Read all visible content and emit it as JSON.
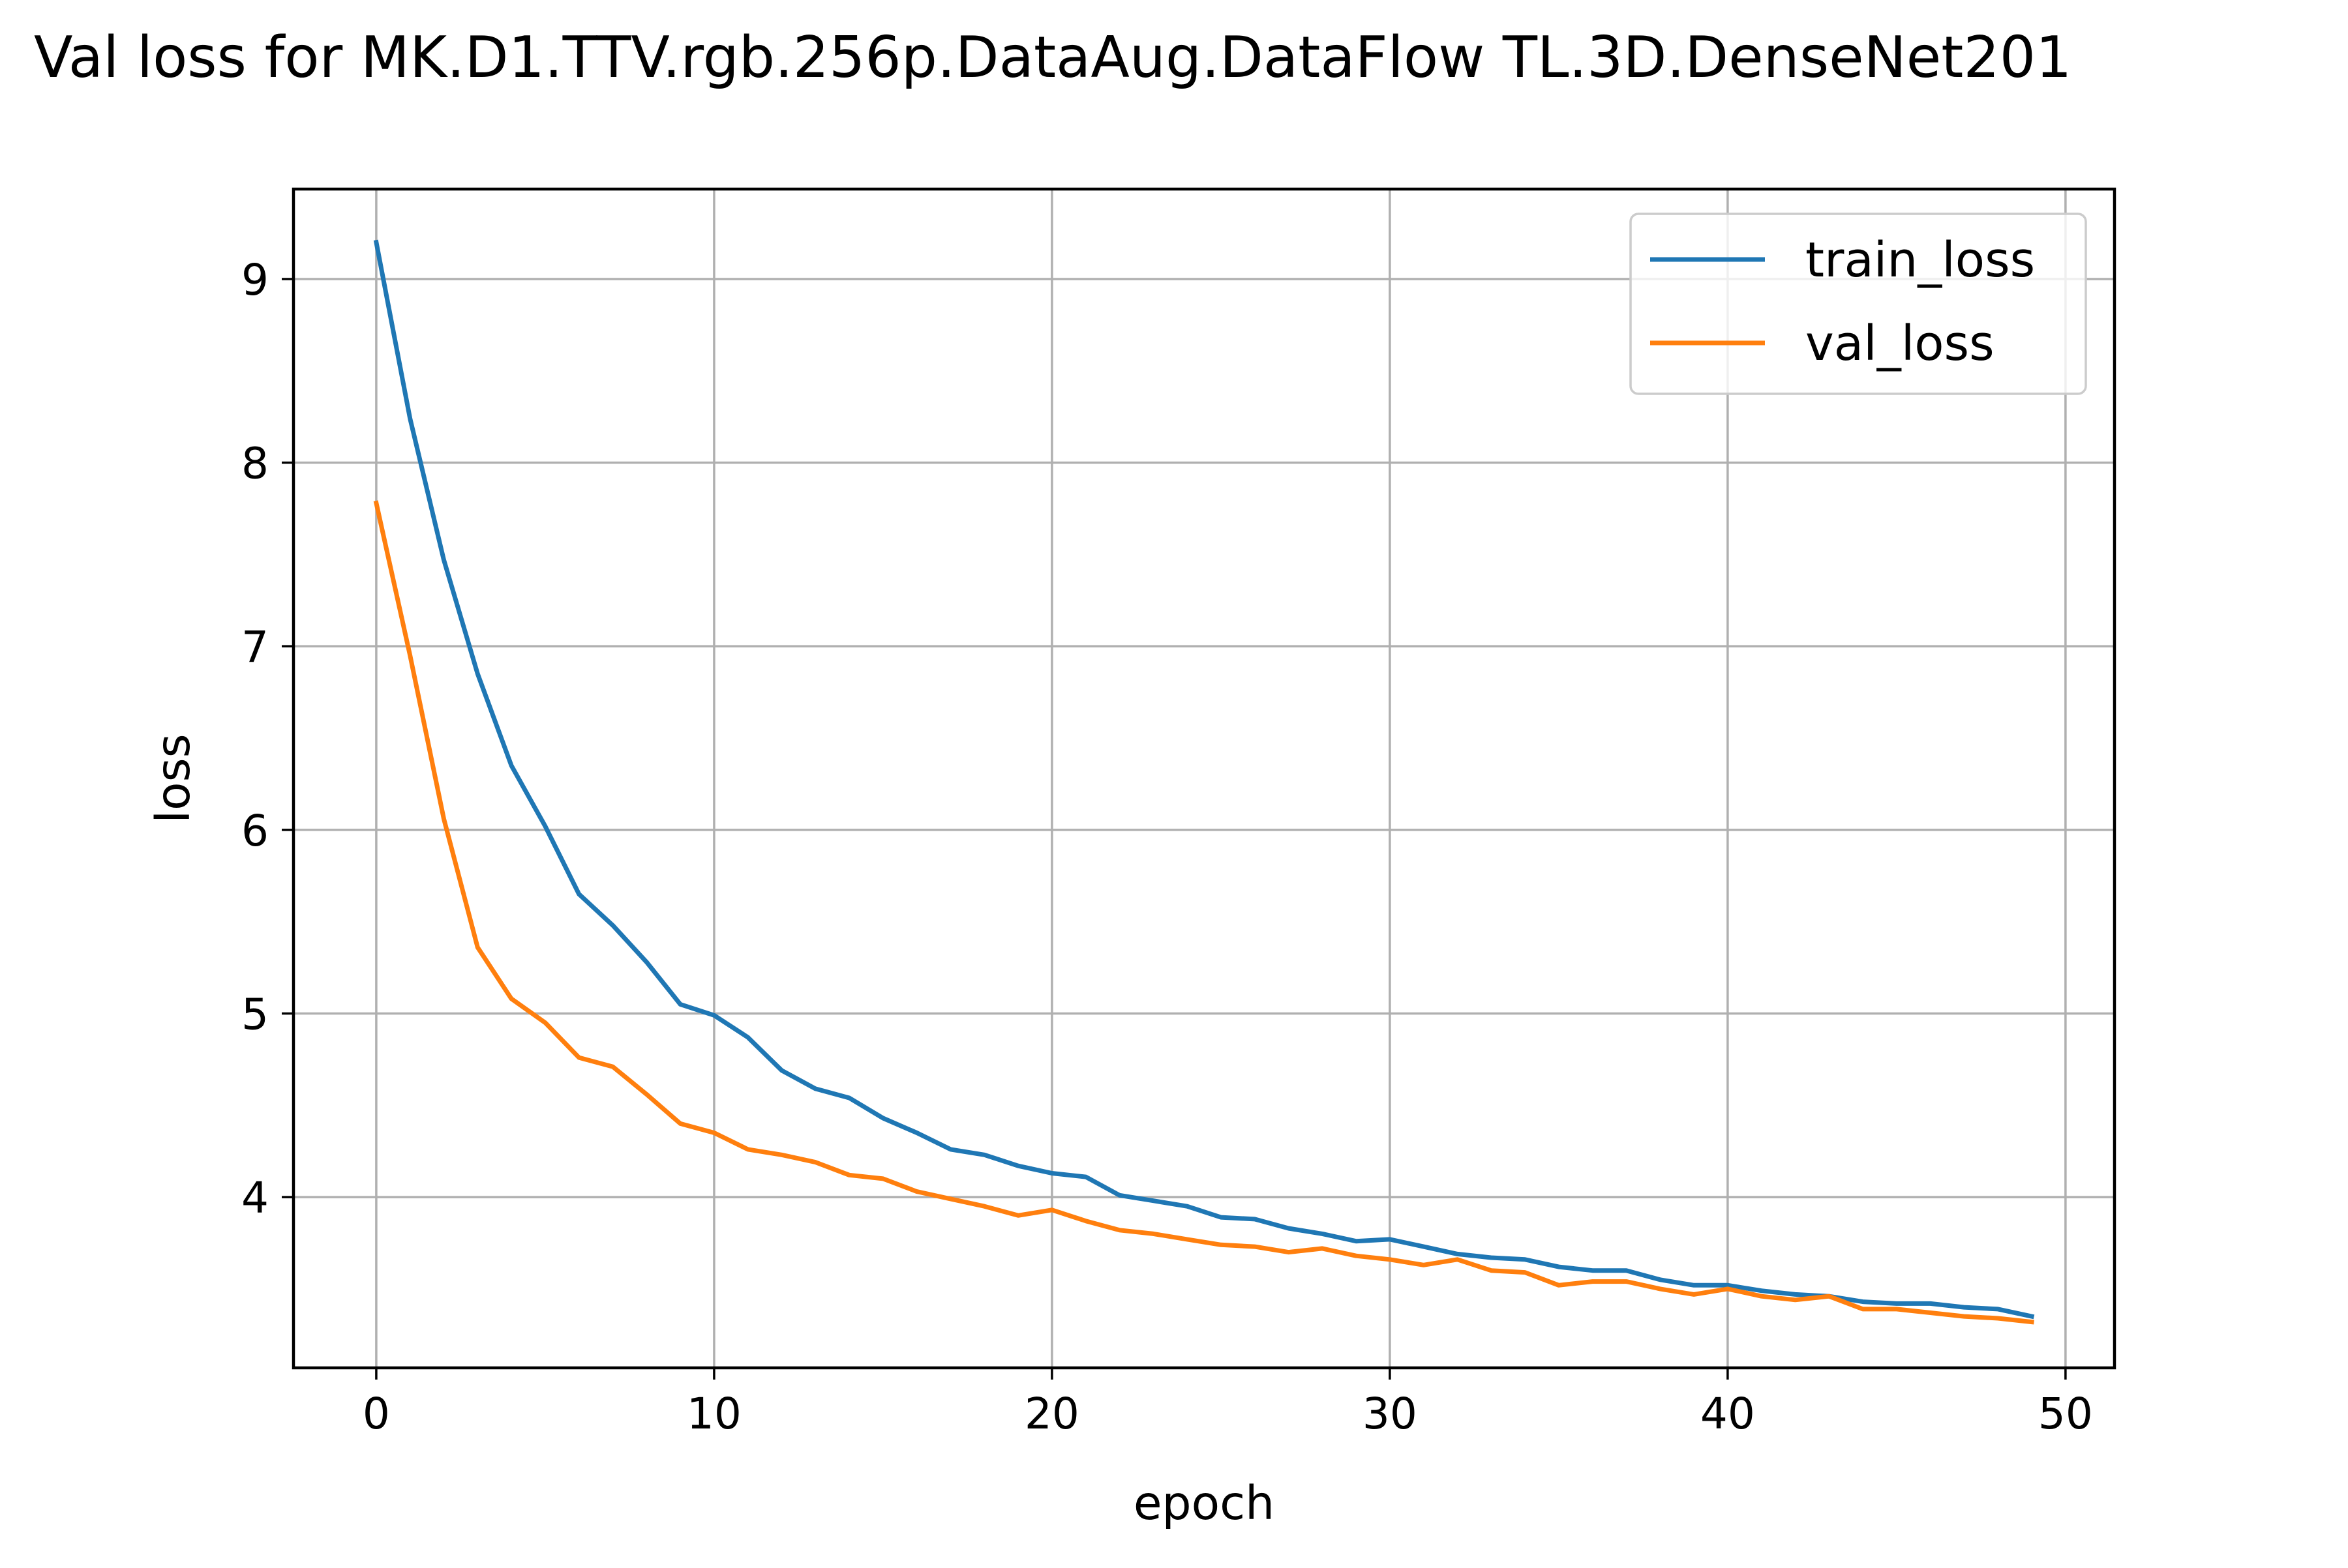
{
  "chart_data": {
    "type": "line",
    "title": "Val loss for MK.D1.TTV.rgb.256p.DataAug.DataFlow TL.3D.DenseNet201",
    "xlabel": "epoch",
    "ylabel": "loss",
    "xlim": [
      -2.45,
      51.45
    ],
    "ylim": [
      3.07,
      9.49
    ],
    "xticks": [
      0,
      10,
      20,
      30,
      40,
      50
    ],
    "yticks": [
      4,
      5,
      6,
      7,
      8,
      9
    ],
    "grid": true,
    "legend": {
      "position": "upper right"
    },
    "x": [
      0,
      1,
      2,
      3,
      4,
      5,
      6,
      7,
      8,
      9,
      10,
      11,
      12,
      13,
      14,
      15,
      16,
      17,
      18,
      19,
      20,
      21,
      22,
      23,
      24,
      25,
      26,
      27,
      28,
      29,
      30,
      31,
      32,
      33,
      34,
      35,
      36,
      37,
      38,
      39,
      40,
      41,
      42,
      43,
      44,
      45,
      46,
      47,
      48,
      49
    ],
    "series": [
      {
        "name": "train_loss",
        "color": "#1f77b4",
        "values": [
          9.2,
          8.24,
          7.47,
          6.85,
          6.35,
          6.02,
          5.65,
          5.48,
          5.28,
          5.05,
          4.99,
          4.87,
          4.69,
          4.59,
          4.54,
          4.43,
          4.35,
          4.26,
          4.23,
          4.17,
          4.13,
          4.11,
          4.01,
          3.98,
          3.95,
          3.89,
          3.88,
          3.83,
          3.8,
          3.76,
          3.77,
          3.73,
          3.69,
          3.67,
          3.66,
          3.62,
          3.6,
          3.6,
          3.55,
          3.52,
          3.52,
          3.49,
          3.47,
          3.46,
          3.43,
          3.42,
          3.42,
          3.4,
          3.39,
          3.35
        ]
      },
      {
        "name": "val_loss",
        "color": "#ff7f0e",
        "values": [
          7.78,
          6.95,
          6.06,
          5.36,
          5.08,
          4.95,
          4.76,
          4.71,
          4.56,
          4.4,
          4.35,
          4.26,
          4.23,
          4.19,
          4.12,
          4.1,
          4.03,
          3.99,
          3.95,
          3.9,
          3.93,
          3.87,
          3.82,
          3.8,
          3.77,
          3.74,
          3.73,
          3.7,
          3.72,
          3.68,
          3.66,
          3.63,
          3.66,
          3.6,
          3.59,
          3.52,
          3.54,
          3.54,
          3.5,
          3.47,
          3.5,
          3.46,
          3.44,
          3.46,
          3.39,
          3.39,
          3.37,
          3.35,
          3.34,
          3.32
        ]
      }
    ]
  }
}
